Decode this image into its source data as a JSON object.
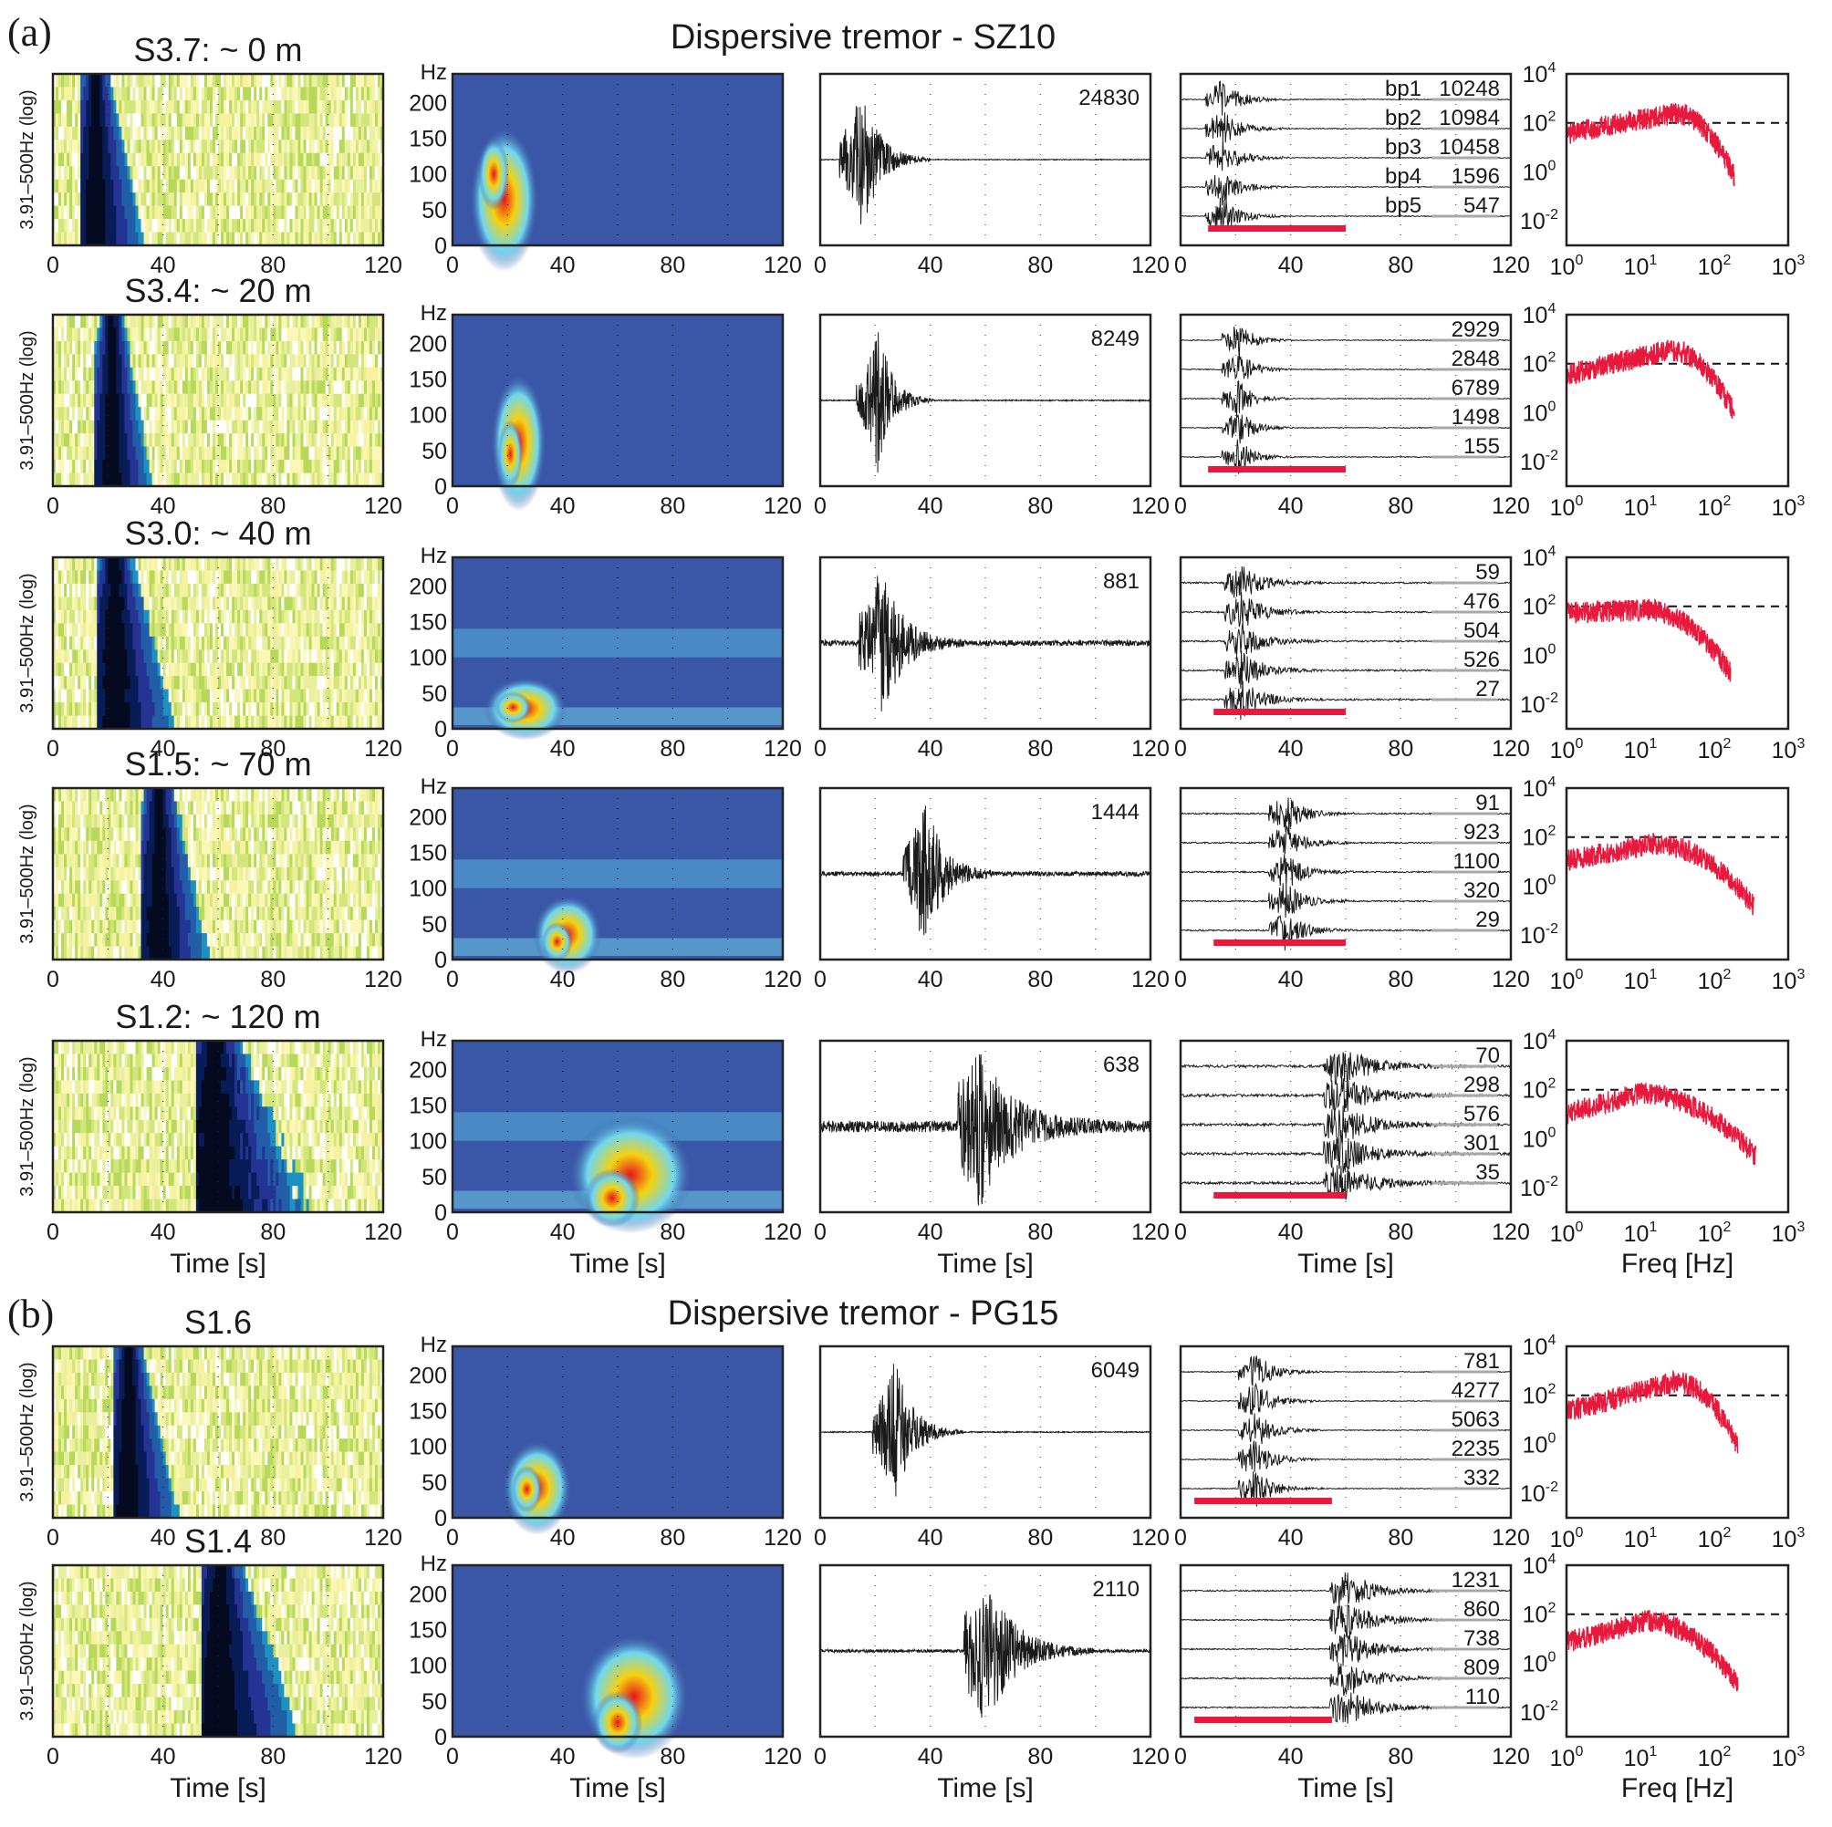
{
  "figure": {
    "panels": [
      {
        "label": "(a)",
        "title": "Dispersive tremor - SZ10"
      },
      {
        "label": "(b)",
        "title": "Dispersive tremor - PG15"
      }
    ]
  },
  "chart_data": {
    "type": "heatmap",
    "description": "Grid of dispersive tremor events: columns = log-band spectrogram, linear spectrogram, waveform, band-passed waveforms, amplitude spectrum",
    "colors": {
      "psd": "#e8193c",
      "bar": "#e8193c",
      "waveform": "#1a1a1a",
      "spec_bg": "#3a56a6"
    },
    "axes": {
      "logspec": {
        "ylabel": "3.91–500Hz (log)",
        "xticks": [
          "0",
          "40",
          "80",
          "120"
        ],
        "xlim": [
          0,
          120
        ]
      },
      "spec": {
        "yunit": "Hz",
        "yticks": [
          "0",
          "50",
          "100",
          "150",
          "200"
        ],
        "ylim": [
          0,
          240
        ],
        "xticks": [
          "0",
          "40",
          "80",
          "120"
        ],
        "xlim": [
          0,
          120
        ]
      },
      "wave": {
        "xticks": [
          "0",
          "40",
          "80",
          "120"
        ],
        "xlim": [
          0,
          120
        ]
      },
      "bp": {
        "xticks": [
          "0",
          "40",
          "80",
          "120"
        ],
        "xlim": [
          0,
          120
        ]
      },
      "psd": {
        "xticks": [
          "10^0",
          "10^1",
          "10^2",
          "10^3"
        ],
        "yticks": [
          "10^4",
          "10^2",
          "10^0",
          "10^-2"
        ],
        "xlim": [
          1,
          1000
        ],
        "ylim": [
          0.001,
          10000
        ],
        "threshold": 100,
        "xscale": "log",
        "yscale": "log"
      }
    },
    "xlabels": {
      "time": "Time [s]",
      "freq": "Freq [Hz]"
    },
    "rows": [
      {
        "group": "a",
        "title": "S3.7: ~ 0 m",
        "peak_amp": "24830",
        "bp_labels": [
          "bp1",
          "bp2",
          "bp3",
          "bp4",
          "bp5"
        ],
        "bp_amps": [
          "10248",
          "10984",
          "10458",
          "1596",
          "547"
        ],
        "onset_s": 15,
        "duration_s": 25,
        "bar_s": [
          10,
          60
        ],
        "spec_peak_hz": 100,
        "spec_top_hz": 185,
        "noise": 0.02,
        "psd_peak_hz": 30,
        "psd_peak": 700,
        "psd_cut_hz": 180,
        "psd_low": 100
      },
      {
        "group": "a",
        "title": "S3.4: ~ 20 m",
        "peak_amp": "8249",
        "bp_labels": [
          "",
          "",
          "",
          "",
          ""
        ],
        "bp_amps": [
          "2929",
          "2848",
          "6789",
          "1498",
          "155"
        ],
        "onset_s": 21,
        "duration_s": 20,
        "bar_s": [
          10,
          60
        ],
        "spec_peak_hz": 45,
        "spec_top_hz": 175,
        "noise": 0.03,
        "psd_peak_hz": 25,
        "psd_peak": 1000,
        "psd_cut_hz": 180,
        "psd_low": 100
      },
      {
        "group": "a",
        "title": "S3.0: ~ 40 m",
        "peak_amp": "881",
        "bp_labels": [
          "",
          "",
          "",
          "",
          ""
        ],
        "bp_amps": [
          "59",
          "476",
          "504",
          "526",
          "27"
        ],
        "onset_s": 22,
        "duration_s": 30,
        "bar_s": [
          12,
          60
        ],
        "spec_peak_hz": 30,
        "spec_top_hz": 80,
        "noise": 0.15,
        "psd_peak_hz": 12,
        "psd_peak": 200,
        "psd_cut_hz": 160,
        "psd_low": 150
      },
      {
        "group": "a",
        "title": "S1.5: ~ 70 m",
        "peak_amp": "1444",
        "bp_labels": [
          "",
          "",
          "",
          "",
          ""
        ],
        "bp_amps": [
          "91",
          "923",
          "1100",
          "320",
          "29"
        ],
        "onset_s": 38,
        "duration_s": 25,
        "bar_s": [
          12,
          60
        ],
        "spec_peak_hz": 25,
        "spec_top_hz": 100,
        "noise": 0.12,
        "psd_peak_hz": 15,
        "psd_peak": 150,
        "psd_cut_hz": 330,
        "psd_low": 30
      },
      {
        "group": "a",
        "title": "S1.2: ~ 120 m",
        "peak_amp": "638",
        "bp_labels": [
          "",
          "",
          "",
          "",
          ""
        ],
        "bp_amps": [
          "70",
          "298",
          "576",
          "301",
          "35"
        ],
        "onset_s": 58,
        "duration_s": 45,
        "bar_s": [
          12,
          60
        ],
        "spec_peak_hz": 20,
        "spec_top_hz": 150,
        "noise": 0.3,
        "psd_peak_hz": 10,
        "psd_peak": 200,
        "psd_cut_hz": 350,
        "psd_low": 30
      },
      {
        "group": "b",
        "title": "S1.6",
        "peak_amp": "6049",
        "bp_labels": [
          "",
          "",
          "",
          "",
          ""
        ],
        "bp_amps": [
          "781",
          "4277",
          "5063",
          "2235",
          "332"
        ],
        "onset_s": 27,
        "duration_s": 25,
        "bar_s": [
          5,
          55
        ],
        "spec_peak_hz": 40,
        "spec_top_hz": 120,
        "noise": 0.03,
        "psd_peak_hz": 30,
        "psd_peak": 1000,
        "psd_cut_hz": 200,
        "psd_low": 60
      },
      {
        "group": "b",
        "title": "S1.4",
        "peak_amp": "2110",
        "bp_labels": [
          "",
          "",
          "",
          "",
          ""
        ],
        "bp_amps": [
          "1231",
          "860",
          "738",
          "809",
          "110"
        ],
        "onset_s": 60,
        "duration_s": 40,
        "bar_s": [
          5,
          55
        ],
        "spec_peak_hz": 20,
        "spec_top_hz": 160,
        "noise": 0.08,
        "psd_peak_hz": 12,
        "psd_peak": 150,
        "psd_cut_hz": 200,
        "psd_low": 20
      }
    ]
  }
}
